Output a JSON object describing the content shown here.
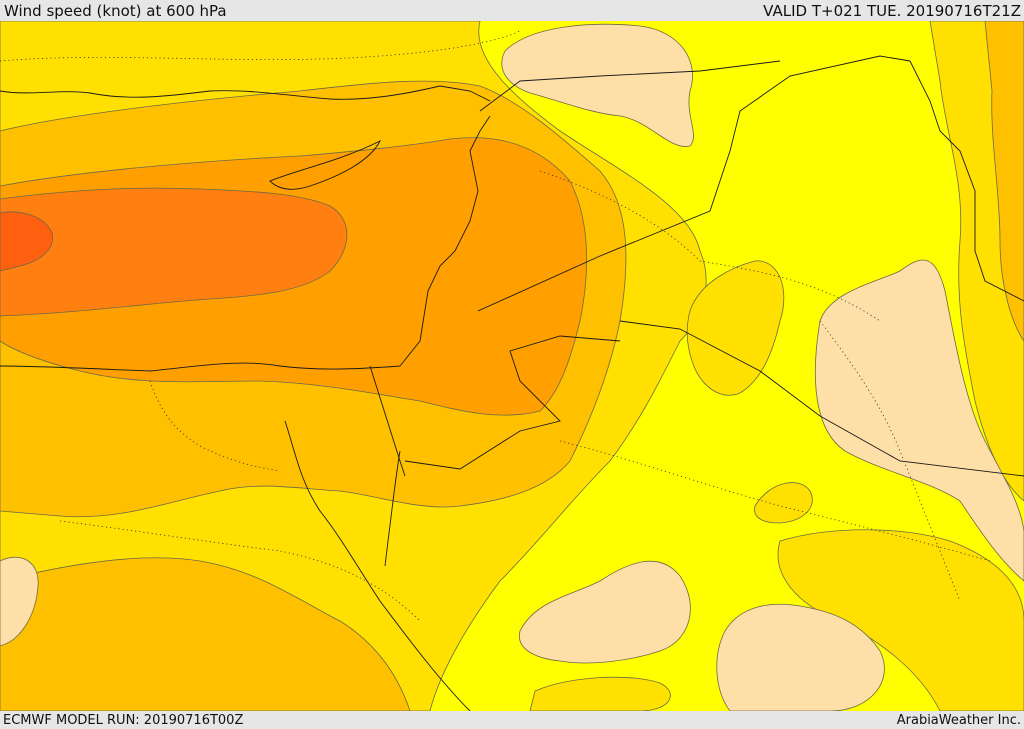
{
  "header": {
    "title": "Wind speed (knot) at 600 hPa",
    "valid": "VALID T+021 TUE. 20190716T21Z"
  },
  "footer": {
    "model_run": "ECMWF MODEL RUN: 20190716T00Z",
    "credit": "ArabiaWeather Inc."
  },
  "map": {
    "field": "wind-speed",
    "colors": {
      "base": "#ffff00",
      "light": "#ffe000",
      "mid": "#ffc000",
      "strong": "#ff9f00",
      "stronger": "#ff7f10",
      "max": "#ff6010",
      "low": "#ffdfa8"
    }
  }
}
